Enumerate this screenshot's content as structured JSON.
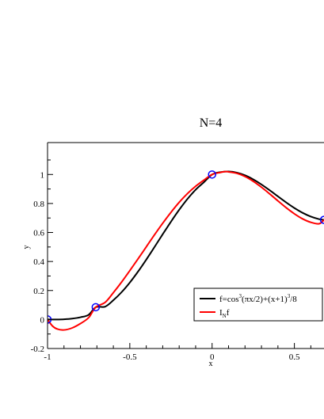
{
  "chart_data": {
    "type": "line",
    "title": "N=4",
    "xlabel": "x",
    "ylabel": "y",
    "xlim": [
      -1,
      0.68
    ],
    "ylim": [
      -0.2,
      1.22
    ],
    "grid": false,
    "legend_position": "lower-right",
    "x_ticks": [
      {
        "value": -1,
        "label": "-1"
      },
      {
        "value": -0.5,
        "label": "-0.5"
      },
      {
        "value": 0,
        "label": "0"
      },
      {
        "value": 0.5,
        "label": "0.5"
      }
    ],
    "y_ticks": [
      {
        "value": -0.2,
        "label": "-0.2"
      },
      {
        "value": 0,
        "label": "0"
      },
      {
        "value": 0.2,
        "label": "0.2"
      },
      {
        "value": 0.4,
        "label": "0.4"
      },
      {
        "value": 0.6,
        "label": "0.6"
      },
      {
        "value": 0.8,
        "label": "0.8"
      },
      {
        "value": 1,
        "label": "1"
      }
    ],
    "series": [
      {
        "legend_label": "f=cos3(πx/2)+(x+1)3/8",
        "legend_parts": {
          "a": "f=cos",
          "sup1": "3",
          "b": "(πx/2)+(x+1)",
          "sup2": "3",
          "c": "/8"
        },
        "color": "#000000",
        "x": [
          -1.0,
          -0.95,
          -0.9,
          -0.85,
          -0.8,
          -0.75,
          -0.707,
          -0.65,
          -0.6,
          -0.55,
          -0.5,
          -0.45,
          -0.4,
          -0.35,
          -0.3,
          -0.25,
          -0.2,
          -0.15,
          -0.1,
          -0.05,
          0.0,
          0.05,
          0.1,
          0.15,
          0.2,
          0.25,
          0.3,
          0.35,
          0.4,
          0.45,
          0.5,
          0.55,
          0.6,
          0.65,
          0.68
        ],
        "y": [
          0.0,
          0.0002,
          0.0017,
          0.0062,
          0.0155,
          0.0326,
          0.0849,
          0.0887,
          0.1328,
          0.1884,
          0.2549,
          0.3305,
          0.413,
          0.4998,
          0.588,
          0.6745,
          0.7564,
          0.8307,
          0.8948,
          0.9462,
          0.9997,
          1.016,
          1.0204,
          1.0127,
          0.9941,
          0.9662,
          0.9311,
          0.8911,
          0.8489,
          0.8074,
          0.7688,
          0.7356,
          0.7095,
          0.692,
          0.687
        ]
      },
      {
        "legend_label": "INf",
        "legend_parts": {
          "a": "I",
          "sub": "N",
          "b": "f"
        },
        "color": "#ff0000",
        "x": [
          -1.0,
          -0.97,
          -0.94,
          -0.9,
          -0.85,
          -0.8,
          -0.75,
          -0.707,
          -0.65,
          -0.6,
          -0.55,
          -0.5,
          -0.45,
          -0.4,
          -0.35,
          -0.3,
          -0.25,
          -0.2,
          -0.15,
          -0.1,
          -0.05,
          0.0,
          0.05,
          0.08,
          0.1,
          0.15,
          0.2,
          0.25,
          0.3,
          0.35,
          0.4,
          0.45,
          0.5,
          0.55,
          0.6,
          0.65,
          0.68
        ],
        "y": [
          0.0,
          -0.045,
          -0.066,
          -0.072,
          -0.058,
          -0.028,
          0.013,
          0.0849,
          0.118,
          0.185,
          0.258,
          0.337,
          0.418,
          0.501,
          0.584,
          0.664,
          0.739,
          0.808,
          0.868,
          0.919,
          0.961,
          0.9997,
          1.014,
          1.02,
          1.018,
          1.008,
          0.986,
          0.953,
          0.912,
          0.866,
          0.818,
          0.771,
          0.729,
          0.694,
          0.67,
          0.66,
          0.687
        ]
      }
    ],
    "interpolation_nodes": {
      "color": "#0000ff",
      "x": [
        -1.0,
        -0.707,
        0.0,
        0.68
      ],
      "y": [
        0.0,
        0.0849,
        0.9997,
        0.687
      ]
    }
  }
}
